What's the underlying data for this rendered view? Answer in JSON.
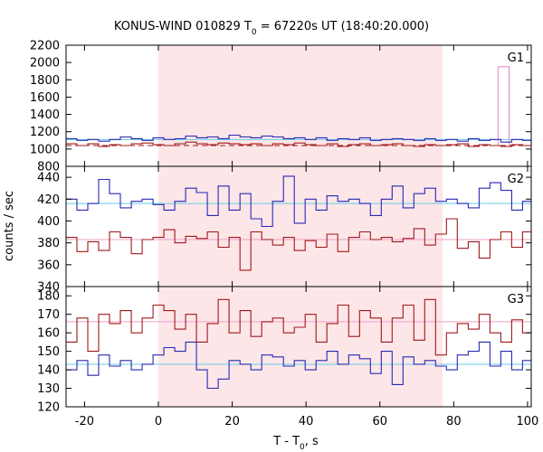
{
  "chart_data": {
    "type": "line",
    "title_main": "KONUS-WIND 010829 T",
    "title_sub": "0",
    "title_rest": " = 67220s UT (18:40:20.000)",
    "xlabel_main": "T - T",
    "xlabel_sub": "0",
    "xlabel_rest": ", s",
    "ylabel": "counts / sec",
    "xlim": [
      -25,
      101
    ],
    "xticks": [
      -20,
      0,
      20,
      40,
      60,
      80,
      100
    ],
    "highlight": {
      "x0": 0,
      "x1": 77,
      "color": "#fde6e8"
    },
    "colors": {
      "blue": "#2828b4",
      "red": "#a01818",
      "blue_bg": "#66cce8",
      "red_bg": "#f0a0c8",
      "pink_step": "#e680c8"
    },
    "panels": [
      {
        "name": "G1",
        "ylim": [
          800,
          2200
        ],
        "yticks": [
          800,
          1000,
          1200,
          1400,
          1600,
          1800,
          2000,
          2200
        ],
        "bg_blue": 1110,
        "bg_red": 1040,
        "start": -25,
        "step": 2.944,
        "blue": [
          1120,
          1100,
          1110,
          1090,
          1110,
          1140,
          1120,
          1100,
          1130,
          1110,
          1120,
          1150,
          1130,
          1140,
          1120,
          1160,
          1140,
          1130,
          1150,
          1140,
          1120,
          1130,
          1110,
          1130,
          1100,
          1120,
          1110,
          1130,
          1100,
          1110,
          1120,
          1110,
          1100,
          1120,
          1100,
          1110,
          1090,
          1120,
          1100,
          1110,
          1080,
          1110,
          1100
        ],
        "red": [
          1060,
          1040,
          1060,
          1030,
          1050,
          1040,
          1060,
          1070,
          1050,
          1040,
          1060,
          1080,
          1060,
          1050,
          1070,
          1060,
          1050,
          1060,
          1040,
          1060,
          1050,
          1070,
          1050,
          1040,
          1060,
          1030,
          1050,
          1060,
          1040,
          1050,
          1060,
          1040,
          1030,
          1050,
          1040,
          1050,
          1060,
          1030,
          1050,
          1040,
          1030,
          1050,
          1040
        ],
        "pink_spike": {
          "x0": 92,
          "x1": 95,
          "value": 1950
        }
      },
      {
        "name": "G2",
        "ylim": [
          340,
          450
        ],
        "yticks": [
          340,
          360,
          380,
          400,
          420,
          440
        ],
        "bg_blue": 416,
        "bg_red": 383,
        "start": -25,
        "step": 2.944,
        "blue": [
          420,
          410,
          416,
          438,
          425,
          412,
          418,
          420,
          415,
          410,
          418,
          430,
          426,
          405,
          432,
          410,
          425,
          402,
          395,
          418,
          441,
          398,
          420,
          410,
          423,
          418,
          420,
          416,
          405,
          420,
          432,
          412,
          425,
          430,
          418,
          420,
          416,
          412,
          430,
          435,
          428,
          410,
          418
        ],
        "red": [
          385,
          372,
          381,
          373,
          390,
          385,
          370,
          383,
          385,
          392,
          380,
          386,
          384,
          390,
          376,
          385,
          355,
          390,
          383,
          378,
          385,
          373,
          382,
          376,
          388,
          372,
          385,
          390,
          383,
          385,
          381,
          384,
          393,
          378,
          388,
          402,
          375,
          381,
          366,
          383,
          390,
          376,
          390
        ]
      },
      {
        "name": "G3",
        "ylim": [
          120,
          185
        ],
        "yticks": [
          120,
          130,
          140,
          150,
          160,
          170,
          180
        ],
        "bg_blue": 143,
        "bg_red": 166,
        "start": -25,
        "step": 2.944,
        "blue": [
          140,
          145,
          137,
          148,
          142,
          145,
          140,
          143,
          148,
          152,
          150,
          155,
          140,
          130,
          135,
          145,
          143,
          140,
          148,
          147,
          142,
          145,
          140,
          145,
          150,
          143,
          148,
          146,
          138,
          150,
          132,
          147,
          143,
          145,
          142,
          140,
          148,
          150,
          155,
          142,
          150,
          140,
          145
        ],
        "red": [
          155,
          168,
          150,
          170,
          165,
          172,
          160,
          168,
          175,
          172,
          162,
          170,
          155,
          165,
          178,
          160,
          172,
          158,
          166,
          168,
          160,
          163,
          170,
          155,
          165,
          175,
          158,
          172,
          168,
          155,
          168,
          175,
          156,
          178,
          148,
          160,
          165,
          162,
          170,
          160,
          155,
          167,
          160
        ]
      }
    ]
  }
}
